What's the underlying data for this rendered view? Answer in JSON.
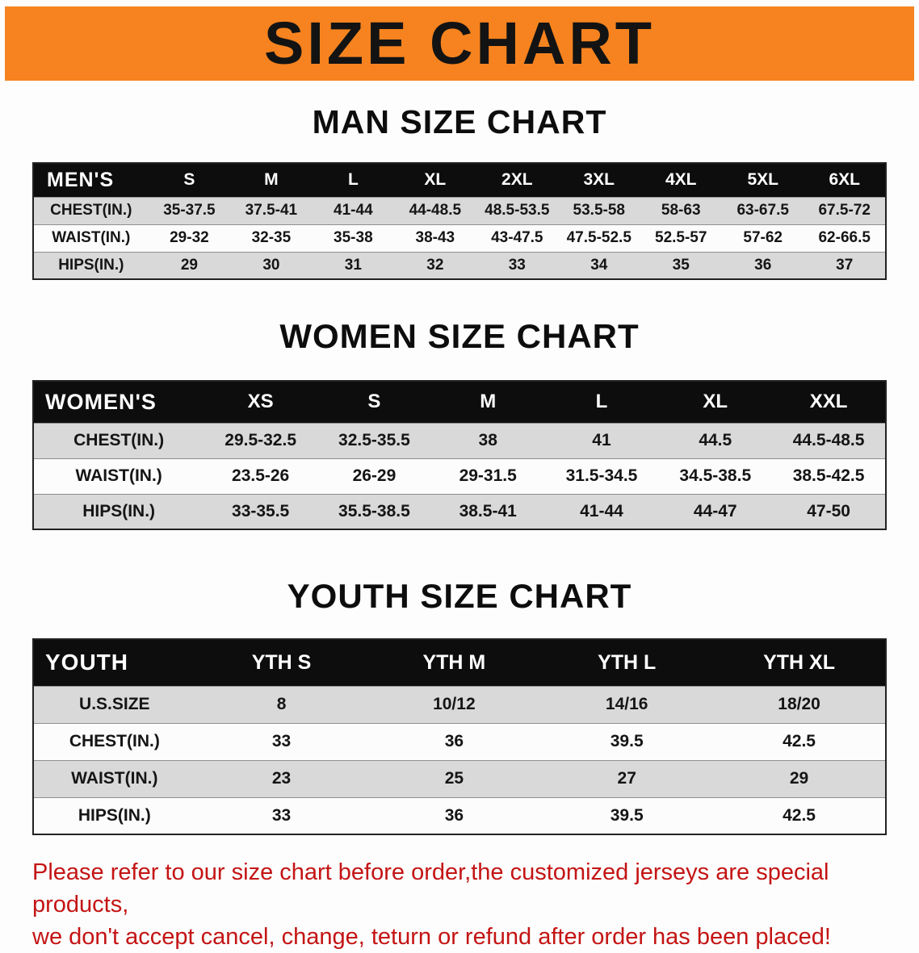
{
  "banner": {
    "title": "SIZE CHART"
  },
  "man": {
    "title": "MAN SIZE CHART",
    "header": [
      "MEN'S",
      "S",
      "M",
      "L",
      "XL",
      "2XL",
      "3XL",
      "4XL",
      "5XL",
      "6XL"
    ],
    "rows": [
      [
        "CHEST(IN.)",
        "35-37.5",
        "37.5-41",
        "41-44",
        "44-48.5",
        "48.5-53.5",
        "53.5-58",
        "58-63",
        "63-67.5",
        "67.5-72"
      ],
      [
        "WAIST(IN.)",
        "29-32",
        "32-35",
        "35-38",
        "38-43",
        "43-47.5",
        "47.5-52.5",
        "52.5-57",
        "57-62",
        "62-66.5"
      ],
      [
        "HIPS(IN.)",
        "29",
        "30",
        "31",
        "32",
        "33",
        "34",
        "35",
        "36",
        "37"
      ]
    ]
  },
  "women": {
    "title": "WOMEN SIZE CHART",
    "header": [
      "WOMEN'S",
      "XS",
      "S",
      "M",
      "L",
      "XL",
      "XXL"
    ],
    "rows": [
      [
        "CHEST(IN.)",
        "29.5-32.5",
        "32.5-35.5",
        "38",
        "41",
        "44.5",
        "44.5-48.5"
      ],
      [
        "WAIST(IN.)",
        "23.5-26",
        "26-29",
        "29-31.5",
        "31.5-34.5",
        "34.5-38.5",
        "38.5-42.5"
      ],
      [
        "HIPS(IN.)",
        "33-35.5",
        "35.5-38.5",
        "38.5-41",
        "41-44",
        "44-47",
        "47-50"
      ]
    ]
  },
  "youth": {
    "title": "YOUTH SIZE CHART",
    "header": [
      "YOUTH",
      "YTH S",
      "YTH M",
      "YTH L",
      "YTH XL"
    ],
    "rows": [
      [
        "U.S.SIZE",
        "8",
        "10/12",
        "14/16",
        "18/20"
      ],
      [
        "CHEST(IN.)",
        "33",
        "36",
        "39.5",
        "42.5"
      ],
      [
        "WAIST(IN.)",
        "23",
        "25",
        "27",
        "29"
      ],
      [
        "HIPS(IN.)",
        "33",
        "36",
        "39.5",
        "42.5"
      ]
    ]
  },
  "footer": {
    "line1": "Please refer to our size chart before order,the customized jerseys are special products,",
    "line2": "we don't accept cancel, change, teturn or refund after order has been placed!"
  },
  "colors": {
    "banner_bg": "#F6831F",
    "table_header_bg": "#0d0d0d",
    "stripe": "#d9d9d9",
    "footer_text": "#C41414"
  }
}
